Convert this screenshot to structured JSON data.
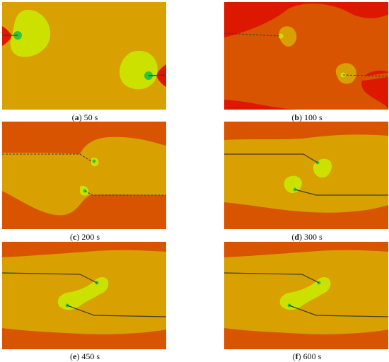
{
  "colors": {
    "orange": "#d8a000",
    "dark_orange": "#d85400",
    "red": "#dd1800",
    "yellow": "#cde100",
    "green": "#2fc43d",
    "crack": "#3e3e2a"
  },
  "panels": [
    {
      "letter": "a",
      "time": "50 s"
    },
    {
      "letter": "b",
      "time": "100 s"
    },
    {
      "letter": "c",
      "time": "200 s"
    },
    {
      "letter": "d",
      "time": "300 s"
    },
    {
      "letter": "e",
      "time": "450 s"
    },
    {
      "letter": "f",
      "time": "600 s"
    }
  ]
}
